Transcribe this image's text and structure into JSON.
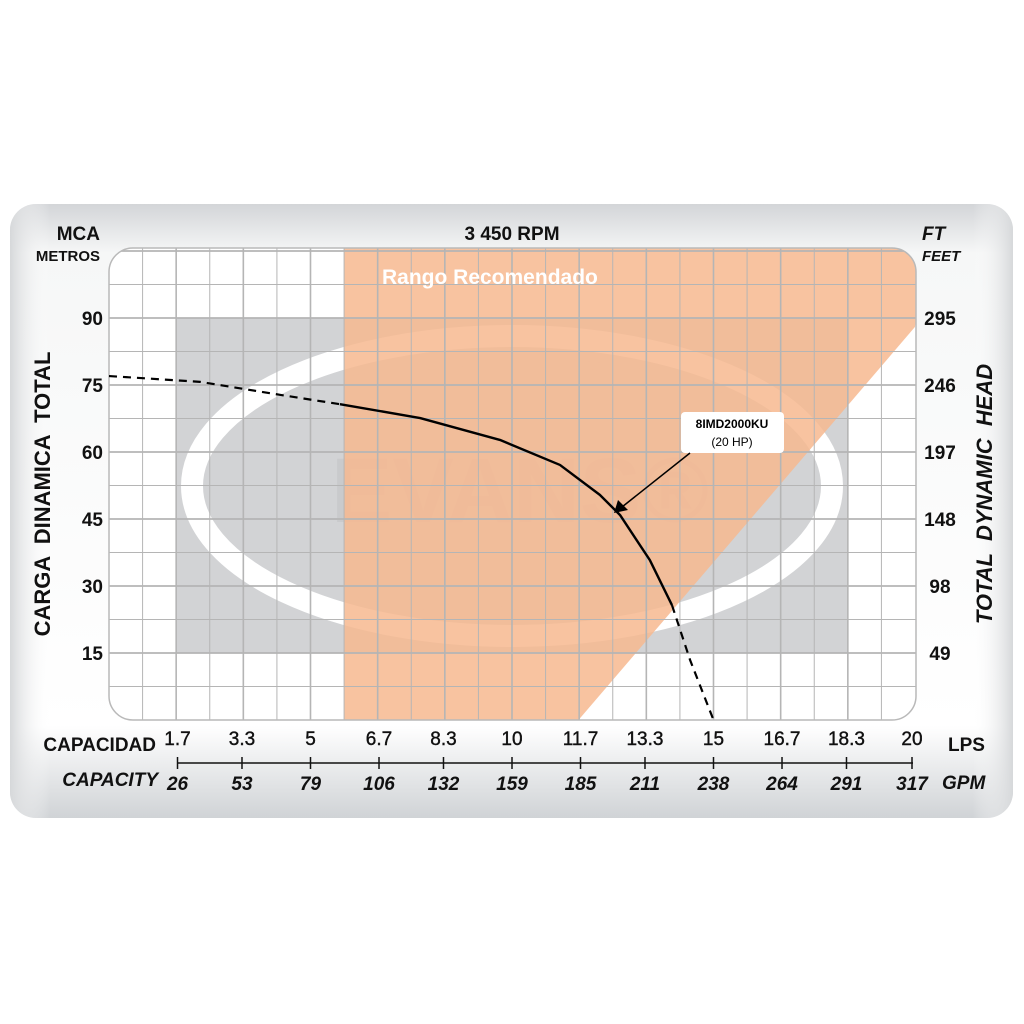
{
  "chart_data": {
    "type": "line",
    "title": "3 450 RPM",
    "left_axis": {
      "unit_top": "MCA",
      "unit_bottom": "METROS",
      "label": "CARGA  DINAMICA  TOTAL",
      "ticks": [
        15,
        30,
        45,
        60,
        75,
        90
      ],
      "range": [
        0,
        105
      ]
    },
    "right_axis": {
      "unit_top": "FT",
      "unit_bottom": "FEET",
      "label": "TOTAL  DYNAMIC  HEAD",
      "ticks": [
        "49",
        "98",
        "148",
        "197",
        "246",
        "295"
      ]
    },
    "x_axis_lps": {
      "label": "CAPACIDAD",
      "unit": "LPS",
      "ticks": [
        1.7,
        3.3,
        5,
        6.7,
        8.3,
        10,
        11.7,
        13.3,
        15,
        16.7,
        18.3,
        20
      ],
      "range": [
        0,
        20
      ]
    },
    "x_axis_gpm": {
      "label": "CAPACITY",
      "unit": "GPM",
      "ticks": [
        "26",
        "53",
        "79",
        "106",
        "132",
        "159",
        "185",
        "211",
        "238",
        "264",
        "291",
        "317"
      ]
    },
    "recommended_range": {
      "label": "Rango Recomendado",
      "x_start": 5.83,
      "diagonal_from": [
        11.65,
        0
      ],
      "diagonal_to": [
        20,
        88
      ],
      "color": "#f7b98f"
    },
    "series": [
      {
        "name": "8IMD2000KU",
        "sublabel": "(20 HP)",
        "color": "#000000",
        "points_dashed_start": [
          [
            0,
            77
          ],
          [
            2.26,
            75.7
          ],
          [
            4.24,
            72.8
          ],
          [
            5.73,
            70.7
          ]
        ],
        "points_solid": [
          [
            5.73,
            70.7
          ],
          [
            7.72,
            67.6
          ],
          [
            9.7,
            62.7
          ],
          [
            11.19,
            57.1
          ],
          [
            12.18,
            50.4
          ],
          [
            12.68,
            45.9
          ],
          [
            13.42,
            35.8
          ],
          [
            13.97,
            25.7
          ]
        ],
        "points_dashed_end": [
          [
            13.97,
            25.7
          ],
          [
            14.42,
            13.4
          ],
          [
            15.0,
            0
          ]
        ]
      }
    ],
    "grid": true,
    "watermark": "EVANS®"
  }
}
